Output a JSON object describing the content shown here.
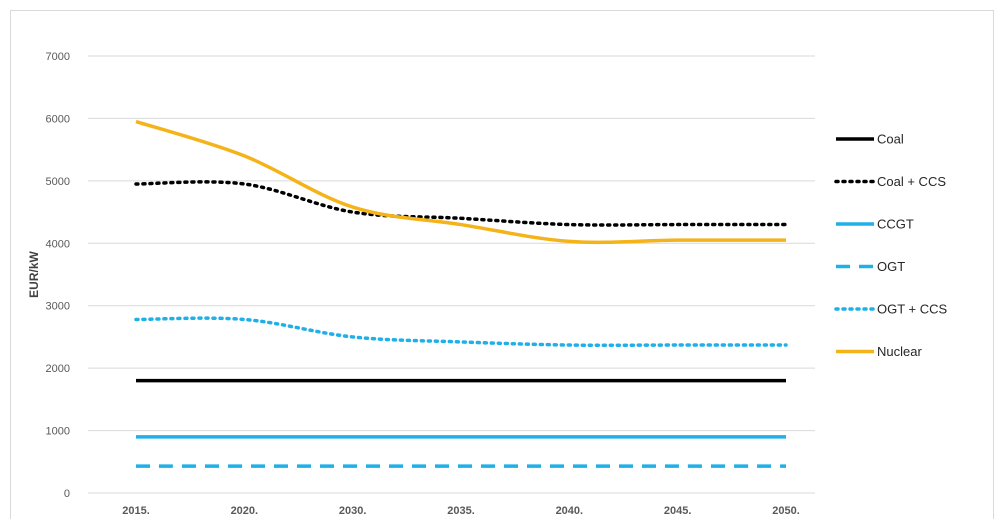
{
  "chart_data": {
    "type": "line",
    "title": "",
    "xlabel": "",
    "ylabel": "EUR/kW",
    "categories": [
      "2015.",
      "2020.",
      "2030.",
      "2035.",
      "2040.",
      "2045.",
      "2050."
    ],
    "ylim": [
      0,
      7000
    ],
    "yticks": [
      0,
      1000,
      2000,
      3000,
      4000,
      5000,
      6000,
      7000
    ],
    "grid": true,
    "legend_position": "right",
    "series": [
      {
        "name": "Coal",
        "values": [
          1800,
          1800,
          1800,
          1800,
          1800,
          1800,
          1800
        ],
        "color": "#000000",
        "dash": "solid"
      },
      {
        "name": "Coal + CCS",
        "values": [
          4950,
          4950,
          4500,
          4400,
          4300,
          4300,
          4300
        ],
        "color": "#000000",
        "dash": "dotted"
      },
      {
        "name": "CCGT",
        "values": [
          900,
          900,
          900,
          900,
          900,
          900,
          900
        ],
        "color": "#1fb0e8",
        "dash": "solid"
      },
      {
        "name": "OGT",
        "values": [
          430,
          430,
          430,
          430,
          430,
          430,
          430
        ],
        "color": "#1fb0e8",
        "dash": "dashed"
      },
      {
        "name": "OGT + CCS",
        "values": [
          2780,
          2780,
          2500,
          2420,
          2370,
          2370,
          2370
        ],
        "color": "#1fb0e8",
        "dash": "dotted"
      },
      {
        "name": "Nuclear",
        "values": [
          5950,
          5400,
          4580,
          4300,
          4030,
          4050,
          4050
        ],
        "color": "#f5b31a",
        "dash": "solid"
      }
    ]
  }
}
